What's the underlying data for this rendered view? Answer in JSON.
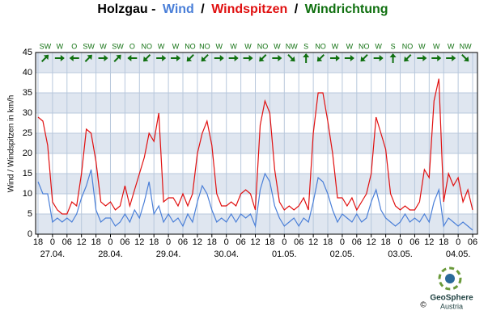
{
  "chart_data": {
    "type": "line",
    "title": "Holzgau -",
    "direction_title": "Windrichtung",
    "y_label": "Wind / Windspitzen in km/h",
    "x": [
      0,
      2,
      4,
      6,
      8,
      10,
      12,
      14,
      16,
      18,
      20,
      22,
      24,
      26,
      28,
      30,
      32,
      34,
      36,
      38,
      40,
      42,
      44,
      46,
      48,
      50,
      52,
      54,
      56,
      58,
      60,
      62,
      64,
      66,
      68,
      70,
      72,
      74,
      76,
      78,
      80,
      82,
      84,
      86,
      88,
      90,
      92,
      94,
      96,
      98,
      100,
      102,
      104,
      106,
      108,
      110,
      112,
      114,
      116,
      118,
      120,
      122,
      124,
      126,
      128,
      130,
      132,
      134,
      136,
      138,
      140,
      142,
      144,
      146,
      148,
      150,
      152,
      154,
      156,
      158,
      160,
      162,
      164,
      166,
      168,
      170,
      172,
      174,
      176,
      178,
      180
    ],
    "series": [
      {
        "name": "Wind",
        "color": "#4a7fd8",
        "values": [
          13,
          10,
          10,
          3,
          4,
          3,
          4,
          3,
          5,
          9,
          12,
          16,
          6,
          3,
          4,
          4,
          2,
          3,
          5,
          3,
          6,
          4,
          8,
          13,
          5,
          7,
          3,
          5,
          3,
          4,
          2,
          5,
          3,
          8,
          12,
          10,
          6,
          3,
          4,
          3,
          5,
          3,
          5,
          4,
          5,
          2,
          11,
          15,
          13,
          7,
          4,
          2,
          3,
          4,
          2,
          4,
          3,
          8,
          14,
          13,
          10,
          6,
          3,
          5,
          4,
          3,
          5,
          3,
          4,
          8,
          11,
          6,
          4,
          3,
          2,
          3,
          5,
          3,
          4,
          3,
          5,
          3,
          8,
          11,
          2,
          4,
          3,
          2,
          3,
          2,
          1
        ]
      },
      {
        "name": "Windspitzen",
        "color": "#e01010",
        "values": [
          29,
          28,
          22,
          8,
          6,
          5,
          5,
          8,
          7,
          15,
          26,
          25,
          18,
          8,
          7,
          8,
          6,
          7,
          12,
          7,
          11,
          15,
          19,
          25,
          23,
          30,
          8,
          9,
          9,
          7,
          10,
          7,
          10,
          20,
          25,
          28,
          22,
          10,
          7,
          7,
          8,
          7,
          10,
          11,
          10,
          6,
          27,
          33,
          30,
          16,
          8,
          6,
          7,
          6,
          7,
          9,
          6,
          25,
          35,
          35,
          28,
          20,
          9,
          9,
          7,
          9,
          6,
          8,
          10,
          15,
          29,
          25,
          21,
          10,
          7,
          6,
          7,
          6,
          6,
          8,
          16,
          14,
          33,
          38.5,
          8,
          15,
          12,
          14,
          8,
          11,
          6
        ]
      }
    ],
    "xlim": [
      -1,
      182
    ],
    "xticks": [
      {
        "value": 0,
        "label": "18"
      },
      {
        "value": 6,
        "label": "0"
      },
      {
        "value": 12,
        "label": "06"
      },
      {
        "value": 18,
        "label": "12"
      },
      {
        "value": 24,
        "label": "18"
      },
      {
        "value": 30,
        "label": "0"
      },
      {
        "value": 36,
        "label": "06"
      },
      {
        "value": 42,
        "label": "12"
      },
      {
        "value": 48,
        "label": "18"
      },
      {
        "value": 54,
        "label": "0"
      },
      {
        "value": 60,
        "label": "06"
      },
      {
        "value": 66,
        "label": "12"
      },
      {
        "value": 72,
        "label": "18"
      },
      {
        "value": 78,
        "label": "0"
      },
      {
        "value": 84,
        "label": "06"
      },
      {
        "value": 90,
        "label": "12"
      },
      {
        "value": 96,
        "label": "18"
      },
      {
        "value": 102,
        "label": "0"
      },
      {
        "value": 108,
        "label": "06"
      },
      {
        "value": 114,
        "label": "12"
      },
      {
        "value": 120,
        "label": "18"
      },
      {
        "value": 126,
        "label": "0"
      },
      {
        "value": 132,
        "label": "06"
      },
      {
        "value": 138,
        "label": "12"
      },
      {
        "value": 144,
        "label": "18"
      },
      {
        "value": 150,
        "label": "0"
      },
      {
        "value": 156,
        "label": "06"
      },
      {
        "value": 162,
        "label": "12"
      },
      {
        "value": 168,
        "label": "18"
      },
      {
        "value": 174,
        "label": "0"
      },
      {
        "value": 180,
        "label": "06"
      }
    ],
    "date_labels": [
      {
        "value": 6,
        "label": "27.04."
      },
      {
        "value": 30,
        "label": "28.04."
      },
      {
        "value": 54,
        "label": "29.04."
      },
      {
        "value": 78,
        "label": "30.04."
      },
      {
        "value": 102,
        "label": "01.05."
      },
      {
        "value": 126,
        "label": "02.05."
      },
      {
        "value": 150,
        "label": "03.05."
      },
      {
        "value": 174,
        "label": "04.05."
      }
    ],
    "ylim": [
      0,
      45
    ],
    "yticks": [
      0,
      5,
      10,
      15,
      20,
      25,
      30,
      35,
      40,
      45
    ],
    "grid": true,
    "directions": {
      "x": [
        3,
        9,
        15,
        21,
        27,
        33,
        39,
        45,
        51,
        57,
        63,
        69,
        75,
        81,
        87,
        93,
        99,
        105,
        111,
        117,
        123,
        129,
        135,
        141,
        147,
        153,
        159,
        165,
        171,
        177
      ],
      "labels": [
        "SW",
        "W",
        "O",
        "SW",
        "W",
        "SW",
        "O",
        "NO",
        "W",
        "W",
        "NO",
        "NO",
        "W",
        "W",
        "W",
        "NO",
        "W",
        "NW",
        "S",
        "NO",
        "W",
        "W",
        "NO",
        "W",
        "S",
        "NO",
        "W",
        "W",
        "W",
        "NW"
      ],
      "degrees": [
        225,
        270,
        90,
        225,
        270,
        225,
        90,
        45,
        270,
        270,
        45,
        45,
        270,
        270,
        270,
        45,
        270,
        315,
        180,
        45,
        270,
        270,
        45,
        270,
        180,
        45,
        270,
        270,
        270,
        315
      ],
      "color": "#107010"
    },
    "logo": {
      "name": "GeoSphere",
      "sub": "Austria",
      "copyright": "©"
    }
  }
}
